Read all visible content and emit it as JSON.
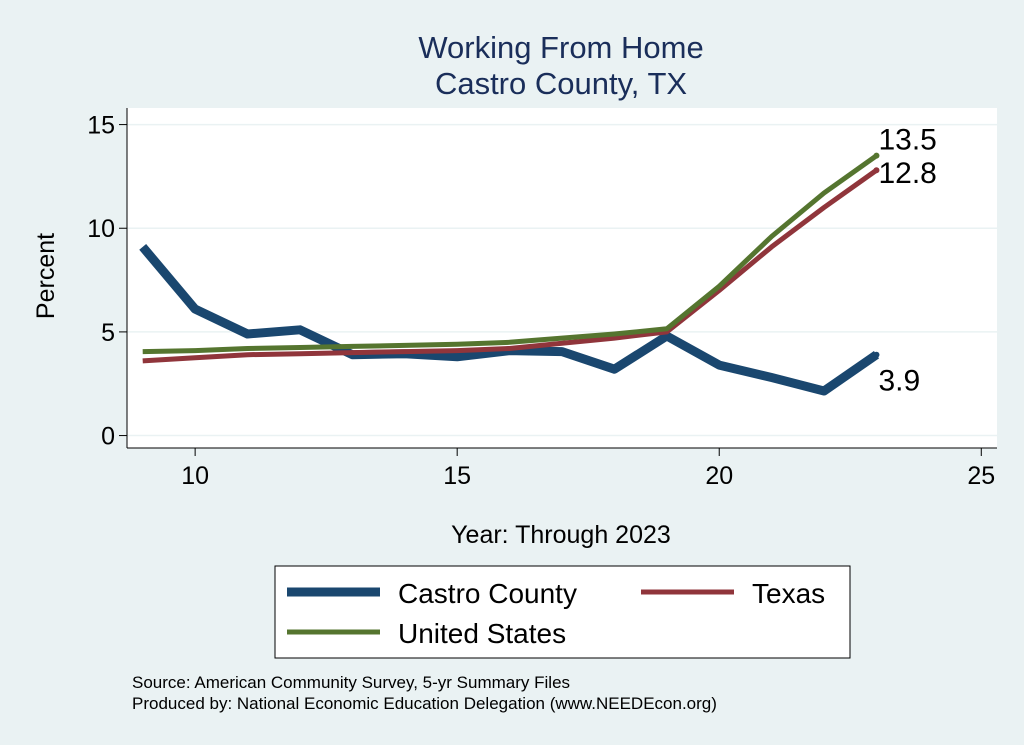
{
  "chart_data": {
    "type": "line",
    "title": "Working From Home",
    "subtitle": "Castro County, TX",
    "xlabel": "Year: Through 2023",
    "ylabel": "Percent",
    "xlim": [
      8.7,
      25.3
    ],
    "ylim": [
      -0.6,
      15.8
    ],
    "xticks": [
      10,
      15,
      20,
      25
    ],
    "yticks": [
      0,
      5,
      10,
      15
    ],
    "grid": true,
    "legend_position": "bottom",
    "series": [
      {
        "name": "Castro County",
        "color": "#1a476f",
        "x": [
          9,
          10,
          11,
          12,
          13,
          14,
          15,
          16,
          17,
          18,
          19,
          20,
          21,
          22,
          23
        ],
        "values": [
          9.1,
          6.1,
          4.9,
          5.1,
          3.9,
          3.95,
          3.8,
          4.1,
          4.05,
          3.2,
          4.8,
          3.4,
          2.8,
          2.15,
          3.9
        ],
        "end_label": "3.9"
      },
      {
        "name": "Texas",
        "color": "#90353b",
        "x": [
          9,
          10,
          11,
          12,
          13,
          14,
          15,
          16,
          17,
          18,
          19,
          20,
          21,
          22,
          23
        ],
        "values": [
          3.6,
          3.75,
          3.9,
          3.95,
          4.0,
          4.05,
          4.1,
          4.2,
          4.45,
          4.7,
          5.0,
          7.0,
          9.1,
          11.0,
          12.8
        ],
        "end_label": "12.8"
      },
      {
        "name": "United States",
        "color": "#55752f",
        "x": [
          9,
          10,
          11,
          12,
          13,
          14,
          15,
          16,
          17,
          18,
          19,
          20,
          21,
          22,
          23
        ],
        "values": [
          4.05,
          4.1,
          4.2,
          4.25,
          4.3,
          4.35,
          4.4,
          4.5,
          4.7,
          4.9,
          5.15,
          7.2,
          9.6,
          11.7,
          13.5
        ],
        "end_label": "13.5"
      }
    ],
    "legend": {
      "entries": [
        "Castro County",
        "Texas",
        "United States"
      ]
    },
    "source": "Source: American Community Survey, 5-yr Summary Files",
    "produced_by": "Produced by: National Economic Education Delegation (www.NEEDEcon.org)"
  },
  "colors": {
    "background": "#eaf2f3",
    "plot_background": "#ffffff",
    "title": "#1a2e5a",
    "grid": "#eaf2f3"
  }
}
